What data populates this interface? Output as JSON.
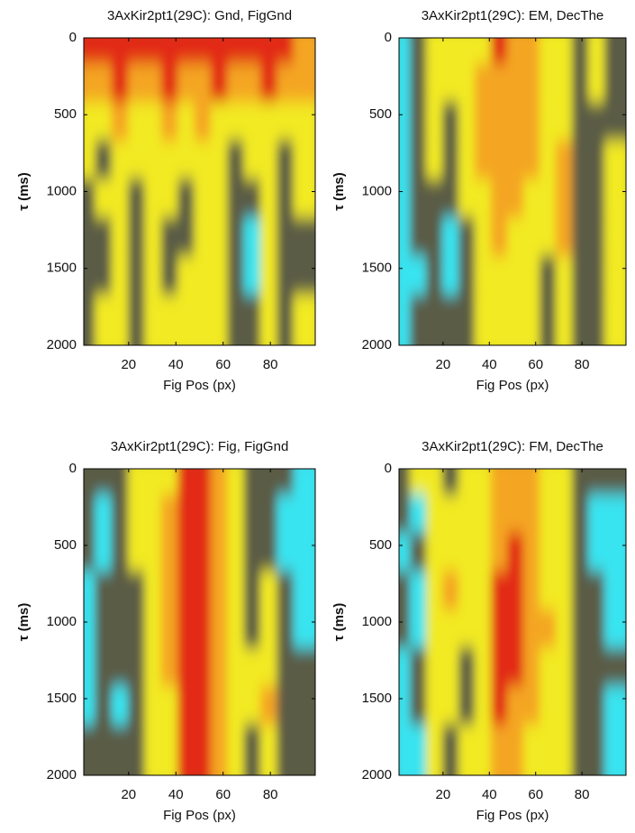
{
  "chart_data": [
    {
      "type": "heatmap",
      "title": "3AxKir2pt1(29C): Gnd, FigGnd",
      "xlabel": "Fig Pos (px)",
      "ylabel": "τ (ms)",
      "x": [
        4.5,
        11.5,
        18.5,
        25.5,
        32.5,
        39.5,
        46.5,
        53.5,
        60.5,
        67.5,
        74.5,
        81.5,
        88.5,
        95.5
      ],
      "y": [
        125,
        375,
        625,
        875,
        1125,
        1375,
        1625,
        1875
      ],
      "z": [
        [
          4,
          4,
          4,
          4,
          4,
          4,
          4,
          4,
          4,
          4,
          4,
          4,
          4,
          3
        ],
        [
          3,
          3,
          4,
          3,
          3,
          4,
          3,
          3,
          4,
          3,
          3,
          4,
          3,
          3
        ],
        [
          2,
          2,
          3,
          2,
          2,
          3,
          2,
          3,
          2,
          2,
          2,
          2,
          2,
          2
        ],
        [
          2,
          1,
          2,
          2,
          2,
          2,
          2,
          2,
          2,
          1,
          2,
          2,
          1,
          2
        ],
        [
          1,
          2,
          2,
          1,
          2,
          2,
          1,
          2,
          2,
          1,
          1,
          2,
          1,
          2
        ],
        [
          1,
          1,
          2,
          1,
          2,
          1,
          1,
          2,
          2,
          1,
          0,
          2,
          1,
          1
        ],
        [
          1,
          1,
          2,
          1,
          2,
          1,
          2,
          2,
          2,
          1,
          0,
          2,
          1,
          1
        ],
        [
          1,
          2,
          2,
          1,
          2,
          2,
          2,
          2,
          2,
          1,
          1,
          2,
          1,
          2
        ]
      ],
      "xlim": [
        1,
        99
      ],
      "xticks": [
        20,
        40,
        60,
        80
      ],
      "ylim": [
        0,
        2000
      ],
      "yticks": [
        0,
        500,
        1000,
        1500,
        2000
      ],
      "y_reversed": true,
      "clim": [
        0,
        4
      ],
      "colormap": [
        "#38e4f0",
        "#5a5c44",
        "#f2ea22",
        "#f4a622",
        "#e22a12"
      ]
    },
    {
      "type": "heatmap",
      "title": "3AxKir2pt1(29C): EM, DecThe",
      "xlabel": "Fig Pos (px)",
      "ylabel": "τ (ms)",
      "x": [
        4.5,
        11.5,
        18.5,
        25.5,
        32.5,
        39.5,
        46.5,
        53.5,
        60.5,
        67.5,
        74.5,
        81.5,
        88.5,
        95.5
      ],
      "y": [
        125,
        375,
        625,
        875,
        1125,
        1375,
        1625,
        1875
      ],
      "z": [
        [
          0,
          1,
          2,
          2,
          2,
          2,
          4,
          3,
          3,
          2,
          2,
          1,
          2,
          1
        ],
        [
          0,
          1,
          2,
          2,
          2,
          3,
          3,
          3,
          3,
          2,
          2,
          1,
          2,
          1
        ],
        [
          0,
          1,
          2,
          1,
          2,
          3,
          3,
          3,
          3,
          2,
          2,
          1,
          1,
          1
        ],
        [
          0,
          1,
          2,
          1,
          2,
          3,
          3,
          3,
          3,
          2,
          3,
          1,
          1,
          2
        ],
        [
          0,
          1,
          1,
          1,
          2,
          2,
          3,
          3,
          2,
          2,
          3,
          1,
          1,
          2
        ],
        [
          0,
          1,
          1,
          0,
          1,
          2,
          3,
          2,
          2,
          2,
          3,
          1,
          1,
          2
        ],
        [
          0,
          0,
          1,
          0,
          1,
          2,
          2,
          2,
          2,
          1,
          2,
          1,
          1,
          2
        ],
        [
          0,
          1,
          1,
          1,
          1,
          2,
          2,
          2,
          2,
          1,
          2,
          1,
          1,
          2
        ]
      ],
      "xlim": [
        1,
        99
      ],
      "xticks": [
        20,
        40,
        60,
        80
      ],
      "ylim": [
        0,
        2000
      ],
      "yticks": [
        0,
        500,
        1000,
        1500,
        2000
      ],
      "y_reversed": true,
      "clim": [
        0,
        4
      ],
      "colormap": [
        "#38e4f0",
        "#5a5c44",
        "#f2ea22",
        "#f4a622",
        "#e22a12"
      ]
    },
    {
      "type": "heatmap",
      "title": "3AxKir2pt1(29C): Fig, FigGnd",
      "xlabel": "Fig Pos (px)",
      "ylabel": "τ (ms)",
      "x": [
        4.5,
        11.5,
        18.5,
        25.5,
        32.5,
        39.5,
        46.5,
        53.5,
        60.5,
        67.5,
        74.5,
        81.5,
        88.5,
        95.5
      ],
      "y": [
        125,
        375,
        625,
        875,
        1125,
        1375,
        1625,
        1875
      ],
      "z": [
        [
          1,
          1,
          1,
          2,
          2,
          2,
          4,
          4,
          3,
          2,
          1,
          1,
          1,
          0
        ],
        [
          1,
          0,
          1,
          2,
          2,
          3,
          4,
          4,
          3,
          2,
          1,
          1,
          0,
          0
        ],
        [
          1,
          0,
          1,
          2,
          2,
          3,
          4,
          4,
          3,
          2,
          1,
          1,
          0,
          0
        ],
        [
          0,
          1,
          1,
          1,
          2,
          3,
          4,
          4,
          3,
          2,
          1,
          2,
          1,
          0
        ],
        [
          0,
          1,
          1,
          1,
          2,
          3,
          4,
          4,
          3,
          2,
          1,
          2,
          1,
          0
        ],
        [
          0,
          1,
          1,
          1,
          2,
          3,
          4,
          4,
          3,
          2,
          2,
          2,
          1,
          1
        ],
        [
          0,
          1,
          0,
          1,
          2,
          2,
          4,
          4,
          3,
          2,
          2,
          3,
          1,
          1
        ],
        [
          1,
          1,
          1,
          1,
          2,
          2,
          4,
          4,
          3,
          2,
          1,
          2,
          1,
          1
        ]
      ],
      "xlim": [
        1,
        99
      ],
      "xticks": [
        20,
        40,
        60,
        80
      ],
      "ylim": [
        0,
        2000
      ],
      "yticks": [
        0,
        500,
        1000,
        1500,
        2000
      ],
      "y_reversed": true,
      "clim": [
        0,
        4
      ],
      "colormap": [
        "#38e4f0",
        "#5a5c44",
        "#f2ea22",
        "#f4a622",
        "#e22a12"
      ]
    },
    {
      "type": "heatmap",
      "title": "3AxKir2pt1(29C): FM, DecThe",
      "xlabel": "Fig Pos (px)",
      "ylabel": "τ (ms)",
      "x": [
        4.5,
        11.5,
        18.5,
        25.5,
        32.5,
        39.5,
        46.5,
        53.5,
        60.5,
        67.5,
        74.5,
        81.5,
        88.5,
        95.5
      ],
      "y": [
        125,
        375,
        625,
        875,
        1125,
        1375,
        1625,
        1875
      ],
      "z": [
        [
          1,
          2,
          2,
          1,
          2,
          2,
          3,
          3,
          3,
          2,
          2,
          1,
          1,
          1
        ],
        [
          1,
          0,
          2,
          2,
          2,
          2,
          3,
          3,
          3,
          2,
          2,
          1,
          0,
          0
        ],
        [
          0,
          1,
          2,
          2,
          2,
          2,
          3,
          4,
          3,
          2,
          2,
          1,
          0,
          0
        ],
        [
          1,
          0,
          2,
          3,
          2,
          2,
          4,
          4,
          3,
          2,
          2,
          1,
          1,
          0
        ],
        [
          1,
          0,
          2,
          2,
          2,
          2,
          4,
          4,
          3,
          3,
          2,
          1,
          1,
          0
        ],
        [
          0,
          1,
          2,
          2,
          1,
          2,
          4,
          4,
          3,
          2,
          2,
          1,
          1,
          1
        ],
        [
          0,
          1,
          2,
          2,
          1,
          2,
          4,
          3,
          3,
          2,
          2,
          1,
          1,
          0
        ],
        [
          0,
          0,
          2,
          1,
          2,
          2,
          3,
          3,
          2,
          2,
          2,
          1,
          1,
          0
        ]
      ],
      "xlim": [
        1,
        99
      ],
      "xticks": [
        20,
        40,
        60,
        80
      ],
      "ylim": [
        0,
        2000
      ],
      "yticks": [
        0,
        500,
        1000,
        1500,
        2000
      ],
      "y_reversed": true,
      "clim": [
        0,
        4
      ],
      "colormap": [
        "#38e4f0",
        "#5a5c44",
        "#f2ea22",
        "#f4a622",
        "#e22a12"
      ]
    }
  ]
}
